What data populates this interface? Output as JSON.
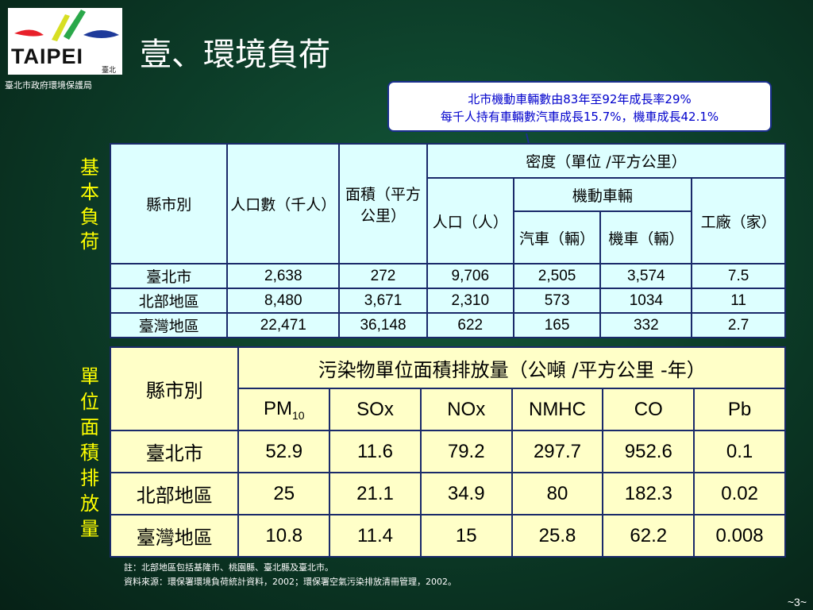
{
  "header": {
    "logo_text": "TAIPEI",
    "logo_sub": "臺北",
    "agency": "臺北市政府環境保護局",
    "title": "壹、環境負荷"
  },
  "callout": {
    "line1": "北市機動車輛數由83年至92年成長率29%",
    "line2": "每千人持有車輛數汽車成長15.7%，機車成長42.1%"
  },
  "side_labels": {
    "basic": [
      "基",
      "本",
      "負",
      "荷"
    ],
    "emission": [
      "單",
      "位",
      "面",
      "積",
      "排",
      "放",
      "量"
    ]
  },
  "table1": {
    "col_city": "縣市別",
    "col_pop": "人口數（千人）",
    "col_area": "面積（平方公里）",
    "col_density": "密度（單位 /平方公里）",
    "col_pop_density": "人口（人）",
    "col_vehicles": "機動車輛",
    "col_car": "汽車（輛）",
    "col_moto": "機車（輛）",
    "col_factory": "工廠（家）",
    "rows": [
      {
        "city": "臺北市",
        "pop": "2,638",
        "area": "272",
        "density": "9,706",
        "car": "2,505",
        "moto": "3,574",
        "factory": "7.5"
      },
      {
        "city": "北部地區",
        "pop": "8,480",
        "area": "3,671",
        "density": "2,310",
        "car": "573",
        "moto": "1034",
        "factory": "11"
      },
      {
        "city": "臺灣地區",
        "pop": "22,471",
        "area": "36,148",
        "density": "622",
        "car": "165",
        "moto": "332",
        "factory": "2.7"
      }
    ]
  },
  "table2": {
    "col_city": "縣市別",
    "header": "污染物單位面積排放量（公噸  /平方公里 -年）",
    "pollutants": {
      "pm_base": "PM",
      "pm_sub": "10",
      "sox": "SOx",
      "nox": "NOx",
      "nmhc": "NMHC",
      "co": "CO",
      "pb": "Pb"
    },
    "rows": [
      {
        "city": "臺北市",
        "pm10": "52.9",
        "sox": "11.6",
        "nox": "79.2",
        "nmhc": "297.7",
        "co": "952.6",
        "pb": "0.1"
      },
      {
        "city": "北部地區",
        "pm10": "25",
        "sox": "21.1",
        "nox": "34.9",
        "nmhc": "80",
        "co": "182.3",
        "pb": "0.02"
      },
      {
        "city": "臺灣地區",
        "pm10": "10.8",
        "sox": "11.4",
        "nox": "15",
        "nmhc": "25.8",
        "co": "62.2",
        "pb": "0.008"
      }
    ]
  },
  "notes": {
    "line1": "註：北部地區包括基隆市、桃園縣、臺北縣及臺北市。",
    "line2": "資料來源：環保署環境負荷統計資料，2002；環保署空氣污染排放清冊管理，2002。"
  },
  "page_number": "~3~",
  "colors": {
    "accent_yellow": "#ffff00",
    "callout_blue": "#0000cc"
  }
}
